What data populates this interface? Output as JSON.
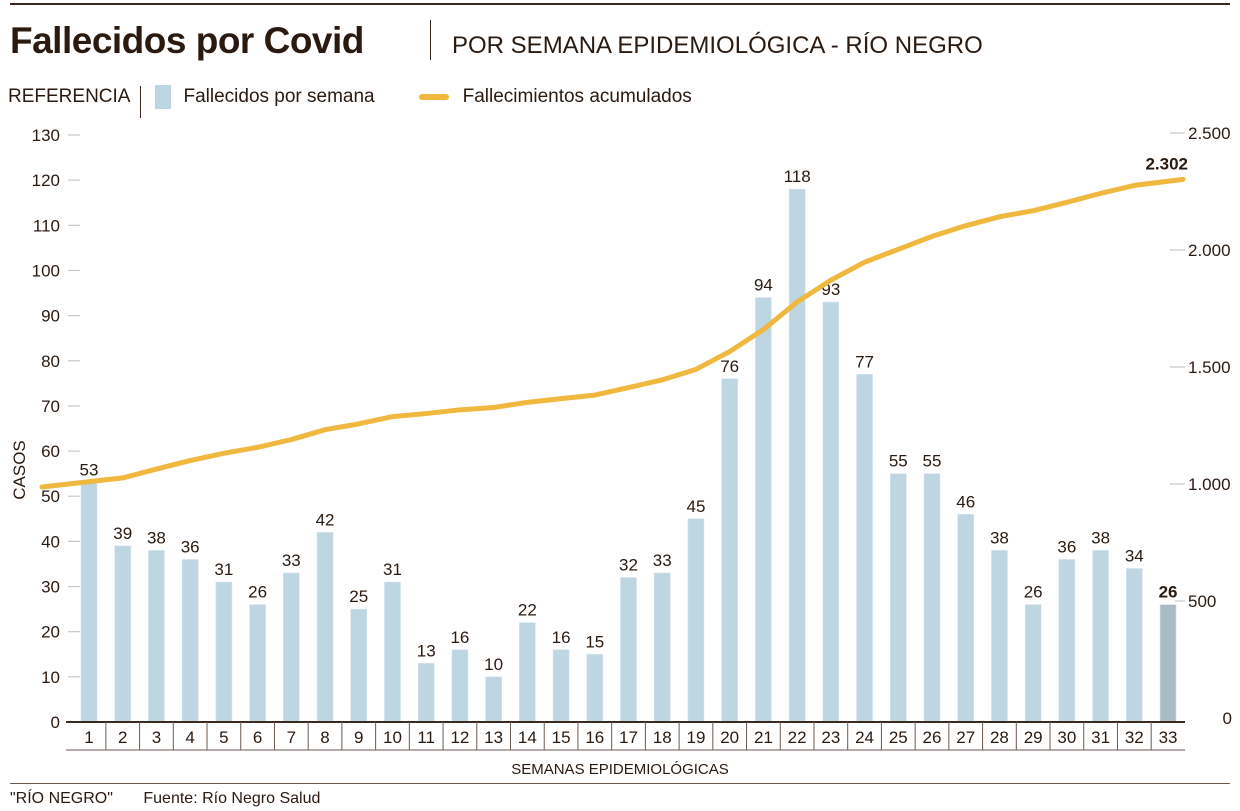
{
  "header": {
    "title": "Fallecidos por Covid",
    "subtitle": "POR SEMANA EPIDEMIOLÓGICA - RÍO NEGRO"
  },
  "legend": {
    "label": "REFERENCIA",
    "items": [
      {
        "name": "Fallecidos por semana",
        "type": "bar",
        "color": "#bed5e2"
      },
      {
        "name": "Fallecimientos acumulados",
        "type": "line",
        "color": "#f0b83e"
      }
    ]
  },
  "footer": {
    "credit": "\"RÍO NEGRO\"",
    "source": "Fuente: Río Negro Salud"
  },
  "chart_data": {
    "type": "bar",
    "title": "Fallecidos por Covid",
    "subtitle": "POR SEMANA EPIDEMIOLÓGICA - RÍO NEGRO",
    "xlabel": "SEMANAS EPIDEMIOLÓGICAS",
    "ylabel": "CASOS",
    "ylim": [
      0,
      130
    ],
    "y_ticks": [
      0,
      10,
      20,
      30,
      40,
      50,
      60,
      70,
      80,
      90,
      100,
      110,
      120,
      130
    ],
    "y2lim": [
      0,
      2500
    ],
    "y2_ticks": [
      0,
      500,
      1000,
      1500,
      2000,
      2500
    ],
    "y2_tick_labels": [
      "0",
      "500",
      "1.000",
      "1.500",
      "2.000",
      "2.500"
    ],
    "grid": false,
    "legend_position": "top-left",
    "categories": [
      "1",
      "2",
      "3",
      "4",
      "5",
      "6",
      "7",
      "8",
      "9",
      "10",
      "11",
      "12",
      "13",
      "14",
      "15",
      "16",
      "17",
      "18",
      "19",
      "20",
      "21",
      "22",
      "23",
      "24",
      "25",
      "26",
      "27",
      "28",
      "29",
      "30",
      "31",
      "32",
      "33"
    ],
    "series": [
      {
        "name": "Fallecidos por semana",
        "type": "bar",
        "axis": "left",
        "color": "#bed5e2",
        "highlight_color": "#a9bcc6",
        "highlight_index": 32,
        "values": [
          53,
          39,
          38,
          36,
          31,
          26,
          33,
          42,
          25,
          31,
          13,
          16,
          10,
          22,
          16,
          15,
          32,
          33,
          45,
          76,
          94,
          118,
          93,
          77,
          55,
          55,
          46,
          38,
          26,
          36,
          38,
          34,
          26
        ]
      },
      {
        "name": "Fallecimientos acumulados",
        "type": "line",
        "axis": "right",
        "color": "#f0b83e",
        "values": [
          987,
          1026,
          1064,
          1100,
          1131,
          1157,
          1190,
          1232,
          1257,
          1288,
          1301,
          1317,
          1327,
          1349,
          1365,
          1380,
          1412,
          1445,
          1490,
          1566,
          1660,
          1778,
          1871,
          1948,
          2003,
          2058,
          2104,
          2142,
          2168,
          2204,
          2242,
          2276,
          2302
        ],
        "end_label": "2.302"
      }
    ]
  }
}
